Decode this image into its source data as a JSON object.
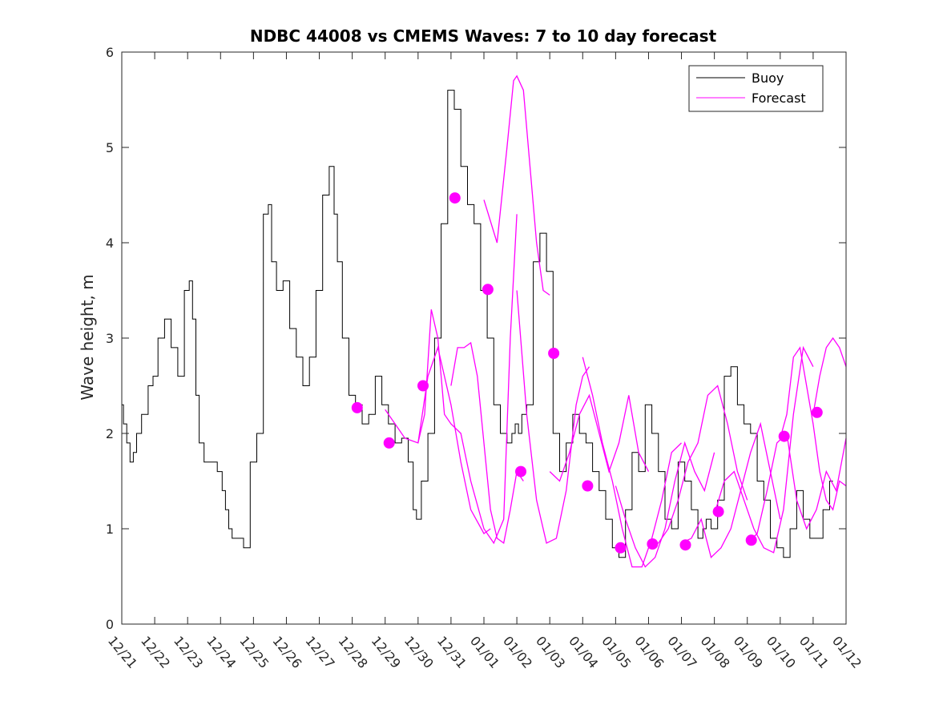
{
  "chart_data": {
    "type": "line",
    "title": "NDBC 44008 vs CMEMS Waves: 7 to 10 day forecast",
    "xlabel": "",
    "ylabel": "Wave height, m",
    "xlim": [
      0,
      22
    ],
    "ylim": [
      0,
      6
    ],
    "y_ticks": [
      0,
      1,
      2,
      3,
      4,
      5,
      6
    ],
    "x_tick_labels": [
      "12/21",
      "12/22",
      "12/23",
      "12/24",
      "12/25",
      "12/26",
      "12/27",
      "12/28",
      "12/29",
      "12/30",
      "12/31",
      "01/01",
      "01/02",
      "01/03",
      "01/04",
      "01/05",
      "01/06",
      "01/07",
      "01/08",
      "01/09",
      "01/10",
      "01/11",
      "01/12"
    ],
    "grid": false,
    "legend": {
      "position": "top-right",
      "entries": [
        "Buoy",
        "Forecast"
      ]
    },
    "colors": {
      "buoy": "#000000",
      "forecast": "#ff00ff"
    },
    "buoy": {
      "name": "Buoy",
      "x": [
        0,
        0.1,
        0.2,
        0.3,
        0.4,
        0.5,
        0.7,
        0.9,
        1.0,
        1.2,
        1.4,
        1.6,
        1.8,
        2.0,
        2.1,
        2.2,
        2.3,
        2.4,
        2.6,
        2.8,
        3.0,
        3.1,
        3.2,
        3.3,
        3.4,
        3.6,
        3.8,
        4.0,
        4.2,
        4.4,
        4.5,
        4.6,
        4.8,
        5.0,
        5.2,
        5.4,
        5.6,
        5.8,
        6.0,
        6.2,
        6.4,
        6.5,
        6.6,
        6.8,
        7.0,
        7.2,
        7.4,
        7.6,
        7.8,
        8.0,
        8.2,
        8.4,
        8.6,
        8.8,
        8.9,
        9.0,
        9.2,
        9.4,
        9.6,
        9.8,
        10.0,
        10.2,
        10.4,
        10.6,
        10.8,
        11.0,
        11.2,
        11.4,
        11.6,
        11.8,
        11.9,
        12.0,
        12.1,
        12.2,
        12.4,
        12.6,
        12.8,
        13.0,
        13.2,
        13.4,
        13.6,
        13.8,
        14.0,
        14.2,
        14.4,
        14.6,
        14.8,
        15.0,
        15.2,
        15.4,
        15.6,
        15.8,
        16.0,
        16.2,
        16.4,
        16.6,
        16.8,
        17.0,
        17.2,
        17.4,
        17.6,
        17.7,
        17.8,
        18.0,
        18.2,
        18.4,
        18.6,
        18.8,
        19.0,
        19.2,
        19.4,
        19.6,
        19.8,
        20.0,
        20.2,
        20.4,
        20.6,
        20.8,
        21.0,
        21.2,
        21.4,
        21.6
      ],
      "y": [
        2.3,
        2.1,
        1.9,
        1.7,
        1.8,
        2.0,
        2.2,
        2.5,
        2.6,
        3.0,
        3.2,
        2.9,
        2.6,
        3.5,
        3.6,
        3.2,
        2.4,
        1.9,
        1.7,
        1.7,
        1.6,
        1.4,
        1.2,
        1.0,
        0.9,
        0.9,
        0.8,
        1.7,
        2.0,
        4.3,
        4.4,
        3.8,
        3.5,
        3.6,
        3.1,
        2.8,
        2.5,
        2.8,
        3.5,
        4.5,
        4.8,
        4.3,
        3.8,
        3.0,
        2.4,
        2.3,
        2.1,
        2.2,
        2.6,
        2.3,
        2.1,
        1.9,
        1.95,
        1.7,
        1.2,
        1.1,
        1.5,
        2.0,
        3.0,
        4.2,
        5.6,
        5.4,
        4.8,
        4.4,
        4.2,
        3.5,
        3.0,
        2.3,
        2.0,
        1.9,
        2.0,
        2.1,
        2.0,
        2.2,
        2.3,
        3.8,
        4.1,
        3.7,
        2.0,
        1.6,
        1.9,
        2.2,
        2.0,
        1.9,
        1.6,
        1.4,
        1.1,
        0.8,
        0.7,
        1.2,
        1.8,
        1.6,
        2.3,
        2.0,
        1.6,
        1.1,
        1.0,
        1.7,
        1.5,
        1.2,
        0.9,
        1.0,
        1.1,
        1.0,
        1.3,
        2.6,
        2.7,
        2.3,
        2.1,
        2.0,
        1.5,
        1.3,
        0.9,
        0.8,
        0.7,
        1.0,
        1.4,
        1.1,
        0.9,
        0.9,
        1.2,
        1.5
      ]
    },
    "forecast": [
      {
        "name": "Forecast",
        "x": [
          8.0,
          8.3,
          8.6,
          9.0,
          9.3,
          9.6,
          10.0,
          10.3,
          10.6,
          11.0,
          11.2
        ],
        "y": [
          2.25,
          2.1,
          1.95,
          1.9,
          2.6,
          2.9,
          2.3,
          1.7,
          1.2,
          0.95,
          1.0
        ]
      },
      {
        "name": "Forecast",
        "x": [
          9.0,
          9.2,
          9.4,
          9.6,
          9.8,
          10.0,
          10.3,
          10.6,
          11.0,
          11.3,
          11.6,
          11.8,
          12.0
        ],
        "y": [
          1.9,
          2.2,
          3.3,
          3.0,
          2.2,
          2.1,
          2.0,
          1.5,
          1.0,
          0.85,
          1.1,
          3.0,
          4.3
        ]
      },
      {
        "name": "Forecast",
        "x": [
          10.0,
          10.2,
          10.4,
          10.6,
          10.8,
          11.0,
          11.2,
          11.4,
          11.6,
          11.8,
          12.0,
          12.2
        ],
        "y": [
          2.5,
          2.9,
          2.9,
          2.95,
          2.6,
          1.9,
          1.2,
          0.9,
          0.85,
          1.2,
          1.6,
          1.5
        ]
      },
      {
        "name": "Forecast",
        "x": [
          11.0,
          11.4,
          11.7,
          11.9,
          12.0,
          12.2,
          12.4,
          12.6,
          12.8,
          13.0
        ],
        "y": [
          4.45,
          4.0,
          5.0,
          5.7,
          5.75,
          5.6,
          4.8,
          4.0,
          3.5,
          3.45
        ]
      },
      {
        "name": "Forecast",
        "x": [
          12.0,
          12.3,
          12.6,
          12.9,
          13.2,
          13.5,
          13.8,
          14.0,
          14.2
        ],
        "y": [
          3.5,
          2.2,
          1.3,
          0.85,
          0.9,
          1.4,
          2.3,
          2.6,
          2.7
        ]
      },
      {
        "name": "Forecast",
        "x": [
          13.0,
          13.3,
          13.6,
          13.9,
          14.2,
          14.5,
          14.8,
          15.1,
          15.4,
          15.7,
          16.0
        ],
        "y": [
          1.6,
          1.5,
          1.8,
          2.2,
          2.4,
          2.0,
          1.6,
          1.9,
          2.4,
          1.8,
          1.6
        ]
      },
      {
        "name": "Forecast",
        "x": [
          14.0,
          14.3,
          14.6,
          14.9,
          15.2,
          15.5,
          15.8,
          16.1,
          16.4,
          16.7,
          17.0
        ],
        "y": [
          2.8,
          2.4,
          1.9,
          1.5,
          1.0,
          0.6,
          0.6,
          0.9,
          1.3,
          1.8,
          1.9
        ]
      },
      {
        "name": "Forecast",
        "x": [
          15.0,
          15.3,
          15.6,
          15.9,
          16.2,
          16.5,
          16.8,
          17.1,
          17.4,
          17.7,
          18.0
        ],
        "y": [
          1.45,
          1.1,
          0.8,
          0.6,
          0.7,
          1.0,
          1.5,
          1.9,
          1.6,
          1.4,
          1.8
        ]
      },
      {
        "name": "Forecast",
        "x": [
          16.0,
          16.3,
          16.6,
          16.9,
          17.2,
          17.5,
          17.8,
          18.1,
          18.4,
          18.7,
          19.0
        ],
        "y": [
          0.8,
          0.85,
          1.0,
          1.3,
          1.7,
          1.9,
          2.4,
          2.5,
          2.1,
          1.6,
          1.3
        ]
      },
      {
        "name": "Forecast",
        "x": [
          17.0,
          17.3,
          17.6,
          17.9,
          18.2,
          18.5,
          18.8,
          19.1,
          19.4,
          19.7,
          20.0
        ],
        "y": [
          0.85,
          0.9,
          1.1,
          0.7,
          0.8,
          1.0,
          1.4,
          1.8,
          2.1,
          1.6,
          1.1
        ]
      },
      {
        "name": "Forecast",
        "x": [
          18.0,
          18.3,
          18.6,
          18.9,
          19.2,
          19.5,
          19.8,
          20.1,
          20.4,
          20.7,
          21.0
        ],
        "y": [
          1.15,
          1.5,
          1.6,
          1.3,
          1.0,
          0.8,
          0.75,
          1.2,
          2.2,
          2.9,
          2.7
        ]
      },
      {
        "name": "Forecast",
        "x": [
          19.0,
          19.3,
          19.6,
          19.9,
          20.2,
          20.5,
          20.8,
          21.1,
          21.4,
          21.7,
          22.0
        ],
        "y": [
          0.85,
          0.95,
          1.4,
          1.9,
          2.0,
          1.3,
          1.0,
          1.2,
          1.6,
          1.4,
          1.95
        ]
      },
      {
        "name": "Forecast",
        "x": [
          20.0,
          20.2,
          20.4,
          20.6,
          20.8,
          21.0,
          21.2,
          21.4,
          21.6,
          21.8,
          22.0
        ],
        "y": [
          1.95,
          2.2,
          2.8,
          2.9,
          2.5,
          2.1,
          1.6,
          1.3,
          1.2,
          1.5,
          1.45
        ]
      },
      {
        "name": "Forecast",
        "x": [
          21.0,
          21.2,
          21.4,
          21.6,
          21.8,
          22.0
        ],
        "y": [
          2.2,
          2.6,
          2.9,
          3.0,
          2.9,
          2.7
        ]
      }
    ],
    "markers": {
      "name": "Forecast",
      "x": [
        7.15,
        8.12,
        9.15,
        10.12,
        11.12,
        12.12,
        13.12,
        14.15,
        15.15,
        16.12,
        17.12,
        18.12,
        19.12,
        20.12,
        21.12
      ],
      "y": [
        2.27,
        1.9,
        2.5,
        4.47,
        3.51,
        1.6,
        2.84,
        1.45,
        0.8,
        0.84,
        0.83,
        1.18,
        0.88,
        1.97,
        2.22
      ]
    }
  }
}
